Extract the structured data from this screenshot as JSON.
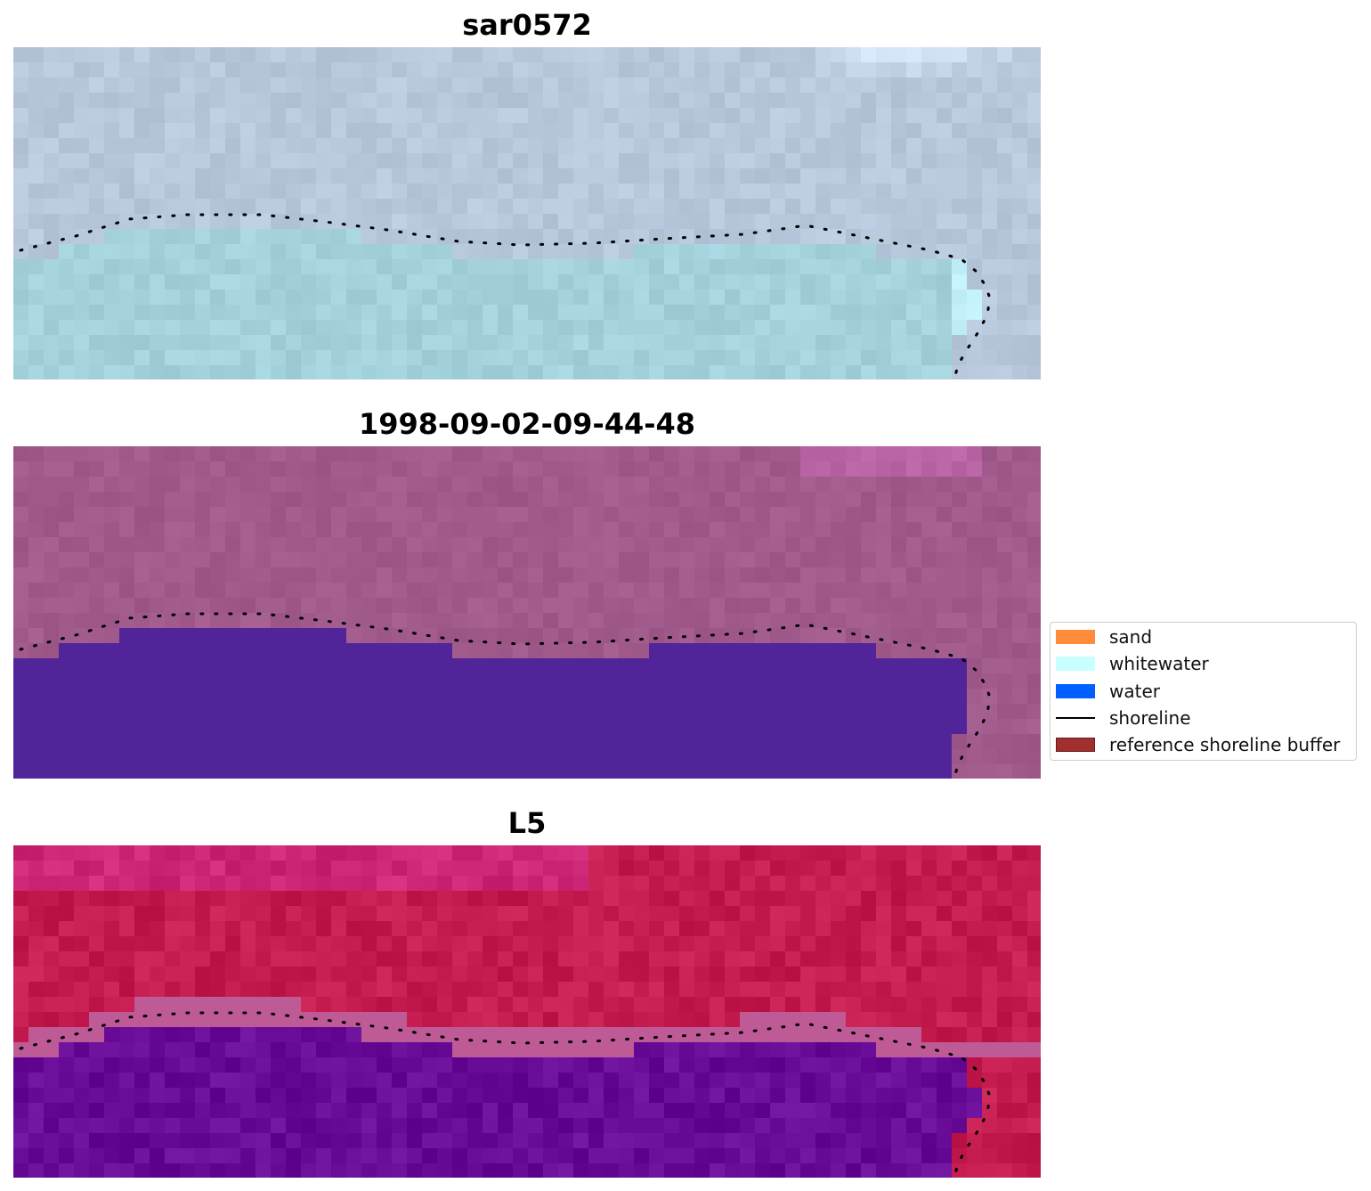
{
  "panels": [
    {
      "title": "sar0572",
      "style": "rgb"
    },
    {
      "title": "1998-09-02-09-44-48",
      "style": "classified"
    },
    {
      "title": "L5",
      "style": "index"
    }
  ],
  "legend": {
    "items": [
      {
        "label": "sand",
        "kind": "patch",
        "color": "#ff8c3a",
        "edge": "#ff8c3a"
      },
      {
        "label": "whitewater",
        "kind": "patch",
        "color": "#c9ffff",
        "edge": "#c9ffff"
      },
      {
        "label": "water",
        "kind": "patch",
        "color": "#0060ff",
        "edge": "#0060ff"
      },
      {
        "label": "shoreline",
        "kind": "line",
        "color": "#000000"
      },
      {
        "label": "reference shoreline buffer",
        "kind": "patch",
        "color": "#a03030",
        "edge": "#6a1a1a"
      }
    ]
  },
  "colors": {
    "rgb_sea": "#a3d1dc",
    "rgb_land": "#b8c8dc",
    "classified_land": "#a05a8c",
    "classified_water": "#52249a",
    "index_land": "#c41c4e",
    "index_water": "#680c98"
  }
}
